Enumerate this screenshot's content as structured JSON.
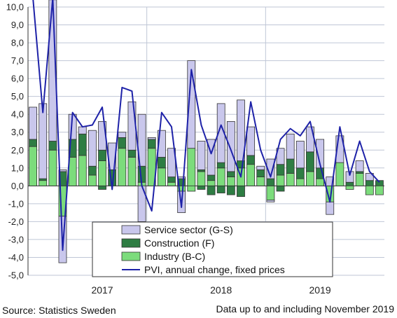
{
  "chart_data": {
    "type": "bar",
    "stacked": true,
    "ylim": [
      -5.0,
      10.0
    ],
    "yticks": [
      10,
      9,
      8,
      7,
      6,
      5,
      4,
      3,
      2,
      1,
      0,
      -1,
      -2,
      -3,
      -4,
      -5
    ],
    "ytick_labels": [
      "10,0",
      "9,0",
      "8,0",
      "7,0",
      "6,0",
      "5,0",
      "4,0",
      "3,0",
      "2,0",
      "1,0",
      "0,0",
      "-1,0",
      "-2,0",
      "-3,0",
      "-4,0",
      "-5,0"
    ],
    "grid": "horizontal",
    "year_labels": [
      {
        "label": "2017",
        "month_index": 7
      },
      {
        "label": "2018",
        "month_index": 19
      },
      {
        "label": "2019",
        "month_index": 29
      }
    ],
    "year_separators_after_month_index": [
      12,
      24
    ],
    "legend_placement": "bottom-center",
    "series": [
      {
        "name": "Service sector (G-S)",
        "color": "#c9c7ec",
        "values": [
          1.8,
          4.2,
          7.9,
          0.1,
          1.4,
          0.4,
          2.0,
          1.6,
          1.5,
          0.3,
          2.7,
          2.9,
          0.1,
          1.5,
          1.6,
          0.1,
          4.9,
          1.6,
          2.0,
          3.3,
          2.8,
          3.4,
          1.6,
          0.2,
          1.1,
          0.9,
          1.4,
          1.5,
          1.4,
          1.6,
          0.5,
          1.5,
          0.6,
          0.6,
          0.4,
          0.0
        ]
      },
      {
        "name": "Construction (F)",
        "color": "#2e7d43",
        "values": [
          0.4,
          0.1,
          0.5,
          0.8,
          1.0,
          1.2,
          0.5,
          0.6,
          0.9,
          0.6,
          0.4,
          0.9,
          0.5,
          0.6,
          0.3,
          0.4,
          0.0,
          0.1,
          0.3,
          0.3,
          0.3,
          0.4,
          0.5,
          0.4,
          0.4,
          0.6,
          0.8,
          0.6,
          1.1,
          0.6,
          0.0,
          0.0,
          0.2,
          0.1,
          0.3,
          0.3
        ]
      },
      {
        "name": "Industry (B-C)",
        "color": "#7cdc7c",
        "values": [
          2.2,
          0.3,
          2.0,
          -1.7,
          1.6,
          1.7,
          0.6,
          1.4,
          0.0,
          2.1,
          1.6,
          0.2,
          2.1,
          1.0,
          0.2,
          -0.3,
          2.1,
          0.8,
          0.3,
          1.0,
          0.5,
          1.0,
          1.2,
          0.5,
          -0.8,
          0.6,
          0.7,
          0.4,
          0.8,
          0.4,
          -0.9,
          1.3,
          0.0,
          0.7,
          0.0,
          0.0
        ]
      },
      {
        "name": "PVI, annual change, fixed prices",
        "color": "#1e22a8",
        "type": "line",
        "values": [
          10.5,
          4.1,
          10.5,
          -3.6,
          4.1,
          3.3,
          3.4,
          4.4,
          -0.2,
          5.5,
          5.3,
          0.0,
          -1.4,
          4.1,
          3.3,
          -1.2,
          6.5,
          3.4,
          1.8,
          3.4,
          2.0,
          0.5,
          4.7,
          2.0,
          0.5,
          2.6,
          3.2,
          2.8,
          3.6,
          1.2,
          -0.9,
          3.3,
          0.6,
          2.5,
          0.8,
          0.2
        ]
      }
    ],
    "extra_bars": [
      {
        "month_index": 0,
        "series": "Service sector (G-S)",
        "value": 10.0
      }
    ],
    "negatives": [
      {
        "month_index": 3,
        "series": "Service sector (G-S)",
        "value": -2.6
      },
      {
        "month_index": 7,
        "series": "Construction (F)",
        "value": -0.2
      },
      {
        "month_index": 11,
        "series": "Service sector (G-S)",
        "value": -2.0
      },
      {
        "month_index": 15,
        "series": "Service sector (G-S)",
        "value": -1.2
      },
      {
        "month_index": 16,
        "series": "Industry (B-C)",
        "value": -0.3
      },
      {
        "month_index": 17,
        "series": "Construction (F)",
        "value": -0.2
      },
      {
        "month_index": 18,
        "series": "Construction (F)",
        "value": -0.5
      },
      {
        "month_index": 19,
        "series": "Construction (F)",
        "value": -0.4
      },
      {
        "month_index": 20,
        "series": "Construction (F)",
        "value": -0.5
      },
      {
        "month_index": 21,
        "series": "Construction (F)",
        "value": -0.6
      },
      {
        "month_index": 24,
        "series": "Service sector (G-S)",
        "value": -0.1
      },
      {
        "month_index": 25,
        "series": "Construction (F)",
        "value": -0.3
      },
      {
        "month_index": 30,
        "series": "Service sector (G-S)",
        "value": -0.7
      },
      {
        "month_index": 32,
        "series": "Industry (B-C)",
        "value": -0.2
      },
      {
        "month_index": 34,
        "series": "Industry (B-C)",
        "value": -0.5
      },
      {
        "month_index": 35,
        "series": "Industry (B-C)",
        "value": -0.5
      }
    ]
  },
  "footer": {
    "source": "Source: Statistics Sweden",
    "note": "Data up to and including November 2019"
  }
}
